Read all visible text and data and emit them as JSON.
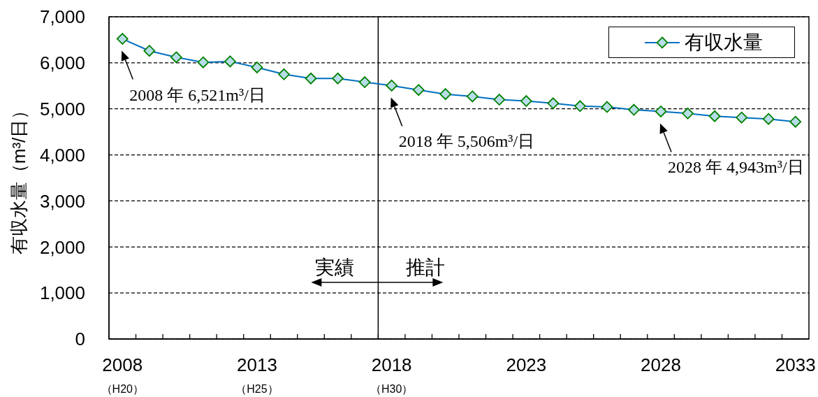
{
  "chart_data": {
    "type": "line",
    "ylabel": "有収水量（m³/日）",
    "x": [
      2008,
      2009,
      2010,
      2011,
      2012,
      2013,
      2014,
      2015,
      2016,
      2017,
      2018,
      2019,
      2020,
      2021,
      2022,
      2023,
      2024,
      2025,
      2026,
      2027,
      2028,
      2029,
      2030,
      2031,
      2032,
      2033
    ],
    "series": [
      {
        "name": "有収水量",
        "color": "#0070c0",
        "values": [
          6521,
          6260,
          6120,
          6010,
          6030,
          5900,
          5750,
          5660,
          5660,
          5580,
          5506,
          5410,
          5320,
          5270,
          5200,
          5170,
          5120,
          5060,
          5040,
          4980,
          4943,
          4900,
          4840,
          4810,
          4780,
          4720
        ]
      }
    ],
    "xlim": [
      2007.5,
      2033.5
    ],
    "xticks": [
      {
        "value": 2008,
        "label": "2008\n（H20）"
      },
      {
        "value": 2008.5,
        "label": null
      },
      {
        "value": 2009.5,
        "label": null
      },
      {
        "value": 2010.5,
        "label": null
      },
      {
        "value": 2011.5,
        "label": null
      },
      {
        "value": 2012.5,
        "label": null
      },
      {
        "value": 2013,
        "label": "2013\n（H25）"
      },
      {
        "value": 2013.5,
        "label": null
      },
      {
        "value": 2014.5,
        "label": null
      },
      {
        "value": 2015.5,
        "label": null
      },
      {
        "value": 2016.5,
        "label": null
      },
      {
        "value": 2017.5,
        "label": null
      },
      {
        "value": 2018,
        "label": "2018\n（H30）"
      },
      {
        "value": 2018.5,
        "label": null
      },
      {
        "value": 2019.5,
        "label": null
      },
      {
        "value": 2020.5,
        "label": null
      },
      {
        "value": 2021.5,
        "label": null
      },
      {
        "value": 2022.5,
        "label": null
      },
      2023,
      {
        "value": 2023.5,
        "label": null
      },
      {
        "value": 2024.5,
        "label": null
      },
      {
        "value": 2025.5,
        "label": null
      },
      {
        "value": 2026.5,
        "label": null
      },
      {
        "value": 2027.5,
        "label": null
      },
      2028,
      {
        "value": 2028.5,
        "label": null
      },
      {
        "value": 2029.5,
        "label": null
      },
      {
        "value": 2030.5,
        "label": null
      },
      {
        "value": 2031.5,
        "label": null
      },
      {
        "value": 2032.5,
        "label": null
      },
      2033
    ],
    "ylim": [
      0,
      7000
    ],
    "yticks": [
      0,
      {
        "value": 1000,
        "label": "1,000"
      },
      {
        "value": 2000,
        "label": "2,000"
      },
      {
        "value": 3000,
        "label": "3,000"
      },
      {
        "value": 4000,
        "label": "4,000"
      },
      {
        "value": 5000,
        "label": "5,000"
      },
      {
        "value": 6000,
        "label": "6,000"
      },
      {
        "value": 7000,
        "label": "7,000"
      }
    ],
    "grid": "y",
    "legend": "top right",
    "marker": "diamond",
    "ref_lines": [
      {
        "axis": "x",
        "value": 2017.5,
        "color": "#000000"
      }
    ],
    "annotations": [
      {
        "text": "2008 年 6,521m³/日",
        "x": 2008,
        "y": 6521
      },
      {
        "text": "2018 年 5,506m³/日",
        "x": 2018,
        "y": 5506
      },
      {
        "text": "2028 年 4,943m³/日",
        "x": 2028,
        "y": 4943
      },
      "実績",
      "推計"
    ]
  }
}
